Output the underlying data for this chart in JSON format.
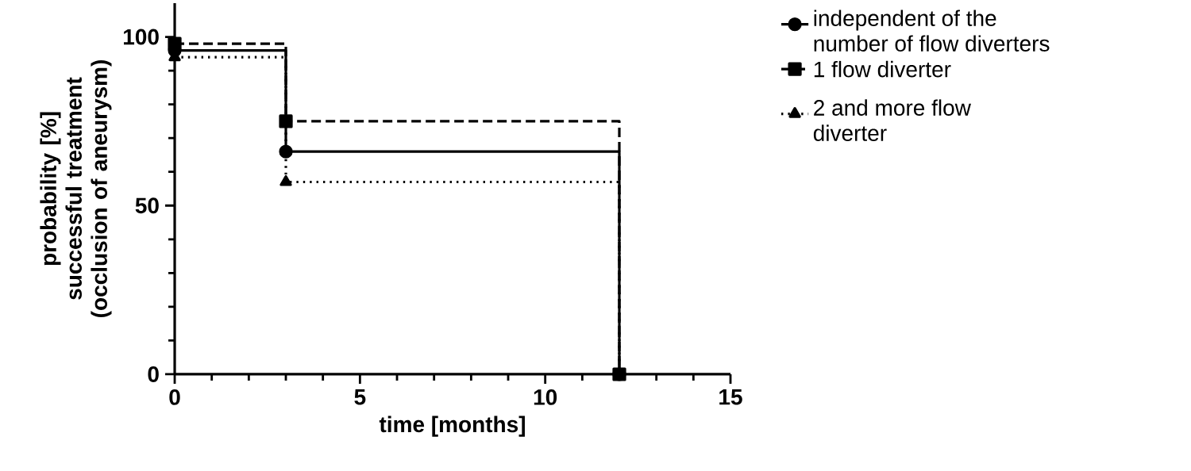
{
  "chart_data": {
    "type": "step",
    "xlabel": "time [months]",
    "ylabel": "probability [%] successful treatment (occlusion of aneurysm)",
    "x": [
      0,
      3,
      12
    ],
    "series": [
      {
        "name": "independent of the number of flow diverters",
        "color": "#000000",
        "values": [
          96,
          66,
          0
        ],
        "marker": "circle",
        "line_style": "solid"
      },
      {
        "name": "1 flow diverter",
        "color": "#000000",
        "values": [
          98,
          75,
          0
        ],
        "marker": "square",
        "line_style": "dashed"
      },
      {
        "name": "2 and more flow diverter",
        "color": "#000000",
        "values": [
          94,
          57,
          0
        ],
        "marker": "triangle",
        "line_style": "dotted"
      }
    ],
    "xlim": [
      0,
      15
    ],
    "xticks": [
      0,
      5,
      10,
      15
    ],
    "ylim": [
      0,
      110
    ],
    "yticks": [
      0,
      50,
      100
    ],
    "grid": false,
    "legend": "right"
  }
}
